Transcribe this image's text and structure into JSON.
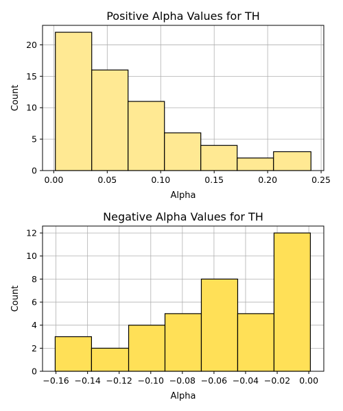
{
  "chart_data": [
    {
      "type": "bar",
      "title": "Positive Alpha Values for TH",
      "xlabel": "Alpha",
      "ylabel": "Count",
      "bin_edges": [
        0.0015,
        0.0355,
        0.0695,
        0.1035,
        0.1375,
        0.1715,
        0.2055,
        0.2405
      ],
      "values": [
        22,
        16,
        11,
        6,
        4,
        2,
        3
      ],
      "xlim": [
        -0.0105,
        0.2525
      ],
      "ylim": [
        0,
        23.1
      ],
      "x_ticks": [
        0.0,
        0.05,
        0.1,
        0.15,
        0.2,
        0.25
      ],
      "x_tick_labels": [
        "0.00",
        "0.05",
        "0.10",
        "0.15",
        "0.20",
        "0.25"
      ],
      "y_ticks": [
        0,
        5,
        10,
        15,
        20
      ],
      "y_tick_labels": [
        "0",
        "5",
        "10",
        "15",
        "20"
      ],
      "grid": true,
      "bar_color": "#ffe993",
      "edge_color": "#000000",
      "grid_color": "#b0b0b0"
    },
    {
      "type": "bar",
      "title": "Negative Alpha Values for TH",
      "xlabel": "Alpha",
      "ylabel": "Count",
      "bin_edges": [
        -0.1605,
        -0.1375,
        -0.114,
        -0.091,
        -0.068,
        -0.045,
        -0.022,
        0.001
      ],
      "values": [
        3,
        2,
        4,
        5,
        8,
        5,
        12
      ],
      "xlim": [
        -0.1685,
        0.0095
      ],
      "ylim": [
        0,
        12.6
      ],
      "x_ticks": [
        -0.16,
        -0.14,
        -0.12,
        -0.1,
        -0.08,
        -0.06,
        -0.04,
        -0.02,
        0.0
      ],
      "x_tick_labels": [
        "−0.16",
        "−0.14",
        "−0.12",
        "−0.10",
        "−0.08",
        "−0.06",
        "−0.04",
        "−0.02",
        "0.00"
      ],
      "y_ticks": [
        0,
        2,
        4,
        6,
        8,
        10,
        12
      ],
      "y_tick_labels": [
        "0",
        "2",
        "4",
        "6",
        "8",
        "10",
        "12"
      ],
      "grid": true,
      "bar_color": "#ffe057",
      "edge_color": "#000000",
      "grid_color": "#b0b0b0"
    }
  ]
}
